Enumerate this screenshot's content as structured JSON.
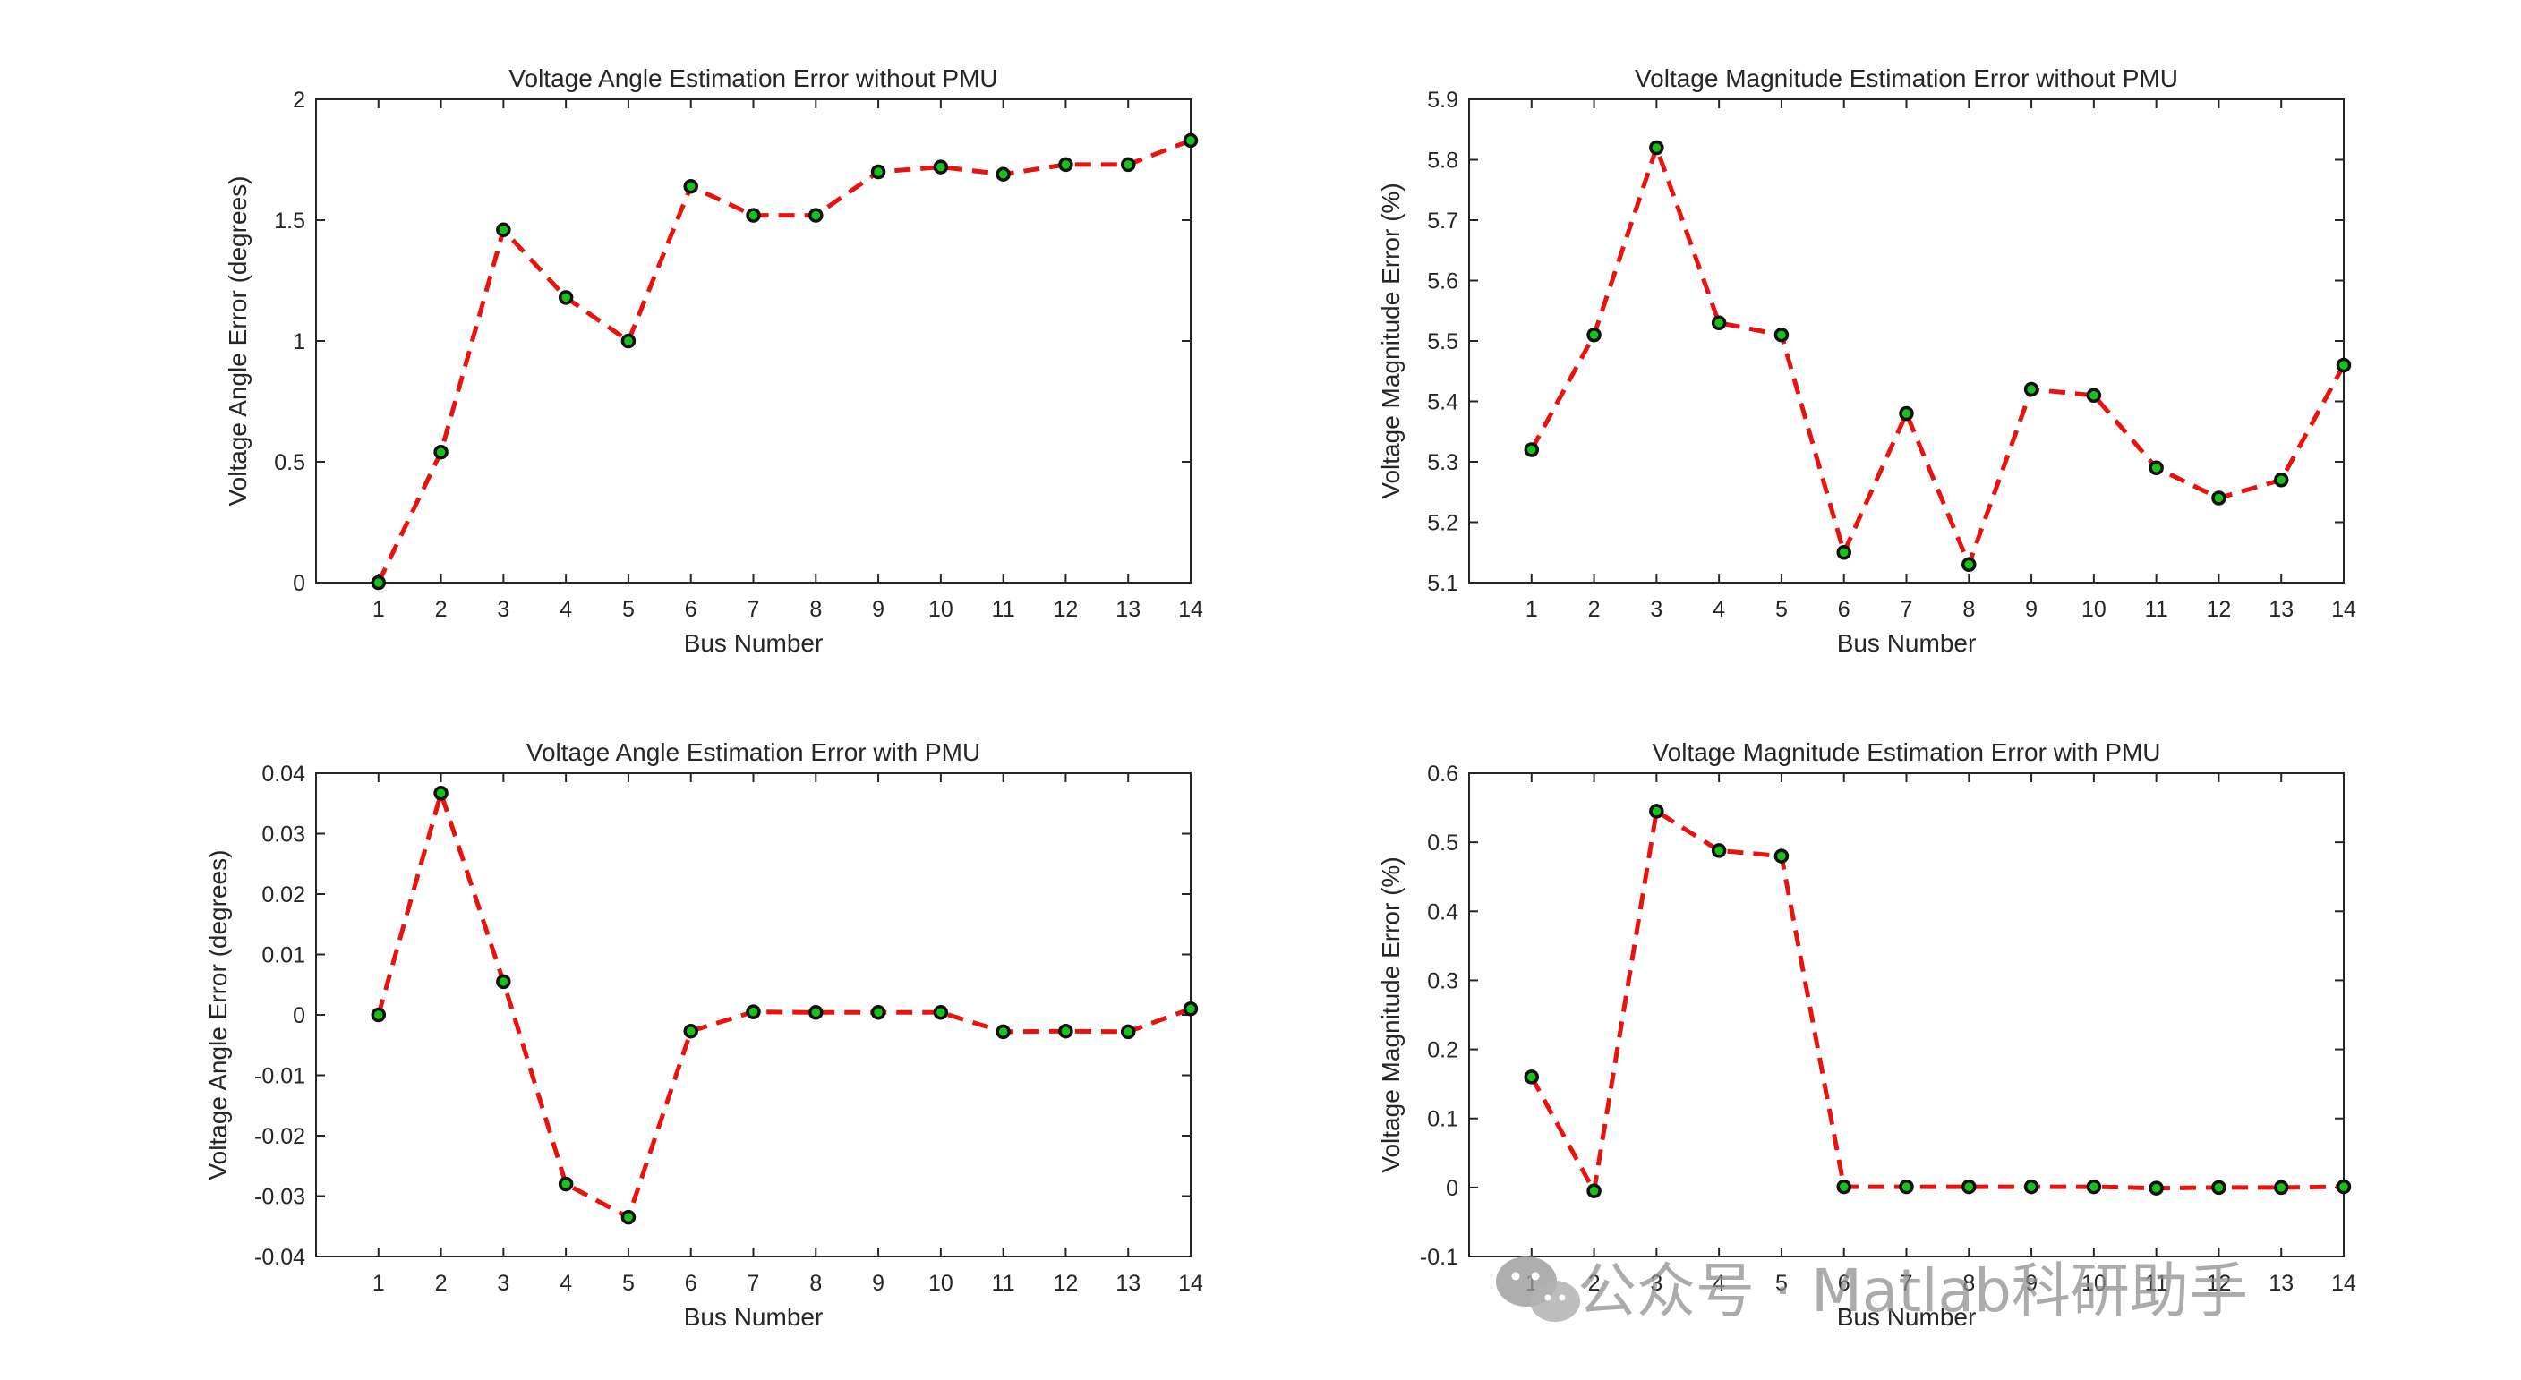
{
  "colors": {
    "line": "#e8130f",
    "marker_edge": "#111111",
    "marker_fill": "#19c21b",
    "axis": "#262626"
  },
  "chart_data": [
    {
      "type": "line",
      "title": "Voltage Angle Estimation Error without PMU",
      "xlabel": "Bus Number",
      "ylabel": "Voltage Angle Error (degrees)",
      "x": [
        1,
        2,
        3,
        4,
        5,
        6,
        7,
        8,
        9,
        10,
        11,
        12,
        13,
        14
      ],
      "xlim": [
        0,
        14
      ],
      "ylim": [
        0,
        2
      ],
      "xticks": [
        "1",
        "2",
        "3",
        "4",
        "5",
        "6",
        "7",
        "8",
        "9",
        "10",
        "11",
        "12",
        "13",
        "14"
      ],
      "yticks": [
        0,
        0.5,
        1,
        1.5,
        2
      ],
      "ytick_labels": [
        "0",
        "0.5",
        "1",
        "1.5",
        "2"
      ],
      "values": [
        0,
        0.54,
        1.46,
        1.18,
        1.0,
        1.64,
        1.52,
        1.52,
        1.7,
        1.72,
        1.69,
        1.73,
        1.73,
        1.83
      ]
    },
    {
      "type": "line",
      "title": "Voltage Magnitude Estimation Error without PMU",
      "xlabel": "Bus Number",
      "ylabel": "Voltage Magnitude Error (%)",
      "x": [
        1,
        2,
        3,
        4,
        5,
        6,
        7,
        8,
        9,
        10,
        11,
        12,
        13,
        14
      ],
      "xlim": [
        0,
        14
      ],
      "ylim": [
        5.1,
        5.9
      ],
      "xticks": [
        "1",
        "2",
        "3",
        "4",
        "5",
        "6",
        "7",
        "8",
        "9",
        "10",
        "11",
        "12",
        "13",
        "14"
      ],
      "yticks": [
        5.1,
        5.2,
        5.3,
        5.4,
        5.5,
        5.6,
        5.7,
        5.8,
        5.9
      ],
      "ytick_labels": [
        "5.1",
        "5.2",
        "5.3",
        "5.4",
        "5.5",
        "5.6",
        "5.7",
        "5.8",
        "5.9"
      ],
      "values": [
        5.32,
        5.51,
        5.82,
        5.53,
        5.51,
        5.15,
        5.38,
        5.13,
        5.42,
        5.41,
        5.29,
        5.24,
        5.27,
        5.46
      ]
    },
    {
      "type": "line",
      "title": "Voltage Angle Estimation Error with PMU",
      "xlabel": "Bus Number",
      "ylabel": "Voltage Angle Error (degrees)",
      "x": [
        1,
        2,
        3,
        4,
        5,
        6,
        7,
        8,
        9,
        10,
        11,
        12,
        13,
        14
      ],
      "xlim": [
        0,
        14
      ],
      "ylim": [
        -0.04,
        0.04
      ],
      "xticks": [
        "1",
        "2",
        "3",
        "4",
        "5",
        "6",
        "7",
        "8",
        "9",
        "10",
        "11",
        "12",
        "13",
        "14"
      ],
      "yticks": [
        -0.04,
        -0.03,
        -0.02,
        -0.01,
        0,
        0.01,
        0.02,
        0.03,
        0.04
      ],
      "ytick_labels": [
        "-0.04",
        "-0.03",
        "-0.02",
        "-0.01",
        "0",
        "0.01",
        "0.02",
        "0.03",
        "0.04"
      ],
      "values": [
        0,
        0.0367,
        0.0055,
        -0.028,
        -0.0335,
        -0.0027,
        0.0005,
        0.0004,
        0.0004,
        0.0004,
        -0.0028,
        -0.0027,
        -0.0028,
        0.001
      ]
    },
    {
      "type": "line",
      "title": "Voltage Magnitude Estimation Error with PMU",
      "xlabel": "Bus Number",
      "ylabel": "Voltage Magnitude Error (%)",
      "x": [
        1,
        2,
        3,
        4,
        5,
        6,
        7,
        8,
        9,
        10,
        11,
        12,
        13,
        14
      ],
      "xlim": [
        0,
        14
      ],
      "ylim": [
        -0.1,
        0.6
      ],
      "xticks": [
        "1",
        "2",
        "3",
        "4",
        "5",
        "6",
        "7",
        "8",
        "9",
        "10",
        "11",
        "12",
        "13",
        "14"
      ],
      "yticks": [
        -0.1,
        0,
        0.1,
        0.2,
        0.3,
        0.4,
        0.5,
        0.6
      ],
      "ytick_labels": [
        "-0.1",
        "0",
        "0.1",
        "0.2",
        "0.3",
        "0.4",
        "0.5",
        "0.6"
      ],
      "values": [
        0.16,
        -0.005,
        0.545,
        0.488,
        0.48,
        0.001,
        0.001,
        0.001,
        0.001,
        0.001,
        -0.001,
        0.0,
        0.0,
        0.001
      ]
    }
  ],
  "watermark": {
    "text": "公众号 · Matlab科研助手",
    "icon": "wechat-icon"
  }
}
